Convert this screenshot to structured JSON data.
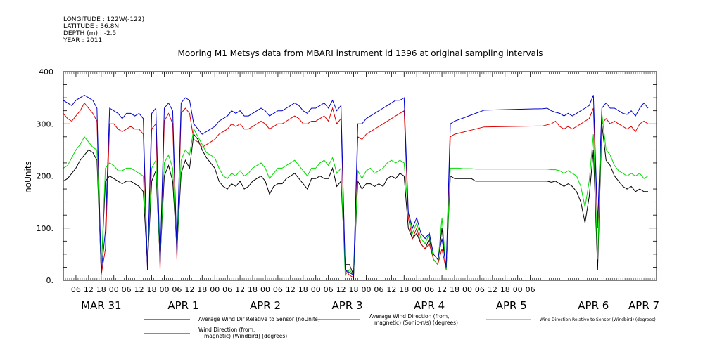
{
  "header": {
    "lines": [
      "LONGITUDE : 122W(-122)",
      "LATITUDE : 36.8N",
      "DEPTH (m) : -2.5",
      "YEAR : 2011"
    ]
  },
  "chart_data": {
    "type": "line",
    "title": "Mooring M1 Metsys data from MBARI instrument id 1396 at original sampling intervals",
    "xlabel": "",
    "ylabel": "noUnits",
    "ylim": [
      0,
      400
    ],
    "yticks": [
      0,
      100,
      200,
      300,
      400
    ],
    "ytick_labels": [
      "0.",
      "100.",
      "200.",
      "300.",
      "400"
    ],
    "xlim_hours": [
      -18,
      264
    ],
    "hour_ticks": [
      "06",
      "12",
      "18",
      "00",
      "06",
      "12",
      "18",
      "00",
      "06",
      "12",
      "18",
      "00",
      "06",
      "12",
      "18",
      "00",
      "06",
      "12",
      "18",
      "00",
      "06",
      "12",
      "18",
      "00",
      "06",
      "12",
      "18",
      "00",
      "06",
      "12",
      "18",
      "00",
      "06",
      "12",
      "18",
      "00",
      "06"
    ],
    "day_labels": [
      {
        "date": "MAR 31",
        "hour": 0
      },
      {
        "date": "APR 1",
        "hour": 39
      },
      {
        "date": "APR 2",
        "hour": 78
      },
      {
        "date": "APR 3",
        "hour": 117
      },
      {
        "date": "APR 4",
        "hour": 156
      },
      {
        "date": "APR 5",
        "hour": 195
      },
      {
        "date": "APR 6",
        "hour": 234
      },
      {
        "date": "APR 7",
        "hour": 258
      }
    ],
    "series": [
      {
        "name": "Average Wind Dir Relative to Sensor (noUnits)",
        "color": "#000000",
        "x": [
          -18,
          -16,
          -14,
          -12,
          -10,
          -8,
          -6,
          -4,
          -2,
          0,
          2,
          4,
          6,
          8,
          10,
          12,
          14,
          16,
          18,
          20,
          22,
          24,
          26,
          28,
          30,
          32,
          34,
          36,
          38,
          40,
          42,
          44,
          46,
          48,
          50,
          52,
          54,
          56,
          58,
          60,
          62,
          64,
          66,
          68,
          70,
          72,
          74,
          76,
          78,
          80,
          82,
          84,
          86,
          88,
          90,
          92,
          94,
          96,
          98,
          100,
          102,
          104,
          106,
          108,
          110,
          112,
          114,
          116,
          118,
          120,
          122,
          124,
          126,
          128,
          130,
          132,
          134,
          136,
          138,
          140,
          142,
          144,
          146,
          148,
          150,
          152,
          154,
          156,
          158,
          160,
          162,
          164,
          166,
          168,
          170,
          172,
          174,
          176,
          178,
          180,
          182,
          210,
          212,
          214,
          216,
          218,
          220,
          222,
          224,
          226,
          228,
          230,
          232,
          234,
          236,
          238,
          240,
          242,
          244,
          246,
          248,
          250,
          252,
          254,
          256,
          258,
          260
        ],
        "y": [
          190,
          195,
          205,
          215,
          230,
          240,
          250,
          245,
          230,
          20,
          190,
          200,
          195,
          190,
          185,
          190,
          190,
          185,
          180,
          170,
          30,
          190,
          210,
          40,
          200,
          220,
          190,
          60,
          205,
          230,
          215,
          280,
          270,
          250,
          235,
          225,
          215,
          190,
          180,
          175,
          185,
          180,
          190,
          175,
          180,
          190,
          195,
          200,
          190,
          165,
          180,
          185,
          185,
          195,
          200,
          205,
          195,
          185,
          175,
          195,
          195,
          200,
          195,
          195,
          215,
          180,
          190,
          30,
          30,
          10,
          190,
          175,
          185,
          185,
          180,
          185,
          180,
          195,
          200,
          195,
          205,
          200,
          100,
          80,
          90,
          70,
          60,
          80,
          40,
          30,
          100,
          20,
          200,
          195,
          195,
          195,
          195,
          195,
          190,
          190,
          190,
          190,
          190,
          188,
          190,
          185,
          180,
          185,
          180,
          170,
          150,
          110,
          160,
          250,
          20,
          300,
          230,
          220,
          200,
          190,
          180,
          175,
          180,
          170,
          175,
          170,
          170
        ]
      },
      {
        "name": "Average Wind Direction (from, magnetic) (Sonic-n/s) (degrees)",
        "color": "#e00000",
        "x": [
          -18,
          -16,
          -14,
          -12,
          -10,
          -8,
          -6,
          -4,
          -2,
          0,
          2,
          4,
          6,
          8,
          10,
          12,
          14,
          16,
          18,
          20,
          22,
          24,
          26,
          28,
          30,
          32,
          34,
          36,
          38,
          40,
          42,
          44,
          46,
          48,
          50,
          52,
          54,
          56,
          58,
          60,
          62,
          64,
          66,
          68,
          70,
          72,
          74,
          76,
          78,
          80,
          82,
          84,
          86,
          88,
          90,
          92,
          94,
          96,
          98,
          100,
          102,
          104,
          106,
          108,
          110,
          112,
          114,
          116,
          118,
          120,
          122,
          124,
          126,
          128,
          130,
          132,
          134,
          136,
          138,
          140,
          142,
          144,
          146,
          148,
          150,
          152,
          154,
          156,
          158,
          160,
          162,
          164,
          166,
          168,
          170,
          172,
          174,
          176,
          178,
          180,
          182,
          210,
          212,
          214,
          216,
          218,
          220,
          222,
          224,
          226,
          228,
          230,
          232,
          234,
          236,
          238,
          240,
          242,
          244,
          246,
          248,
          250,
          252,
          254,
          256,
          258,
          260
        ],
        "y": [
          320,
          310,
          305,
          315,
          325,
          340,
          330,
          320,
          305,
          10,
          60,
          300,
          300,
          290,
          285,
          290,
          295,
          290,
          290,
          280,
          20,
          290,
          300,
          20,
          305,
          320,
          300,
          40,
          320,
          330,
          320,
          270,
          265,
          255,
          260,
          265,
          270,
          280,
          285,
          290,
          300,
          295,
          300,
          290,
          290,
          295,
          300,
          305,
          300,
          290,
          295,
          300,
          300,
          305,
          310,
          315,
          310,
          300,
          300,
          305,
          305,
          310,
          315,
          305,
          330,
          300,
          310,
          20,
          10,
          5,
          275,
          270,
          280,
          285,
          290,
          295,
          300,
          305,
          310,
          315,
          320,
          325,
          120,
          80,
          100,
          70,
          60,
          70,
          40,
          30,
          60,
          20,
          275,
          280,
          282,
          284,
          286,
          288,
          290,
          292,
          294,
          296,
          298,
          300,
          305,
          295,
          290,
          295,
          290,
          295,
          300,
          305,
          310,
          330,
          100,
          300,
          310,
          300,
          305,
          300,
          295,
          290,
          295,
          285,
          300,
          305,
          300
        ]
      },
      {
        "name": "Wind Direction Relative to Sensor (Windbird) (degrees)",
        "color": "#00dd00",
        "x": [
          -18,
          -16,
          -14,
          -12,
          -10,
          -8,
          -6,
          -4,
          -2,
          0,
          2,
          4,
          6,
          8,
          10,
          12,
          14,
          16,
          18,
          20,
          22,
          24,
          26,
          28,
          30,
          32,
          34,
          36,
          38,
          40,
          42,
          44,
          46,
          48,
          50,
          52,
          54,
          56,
          58,
          60,
          62,
          64,
          66,
          68,
          70,
          72,
          74,
          76,
          78,
          80,
          82,
          84,
          86,
          88,
          90,
          92,
          94,
          96,
          98,
          100,
          102,
          104,
          106,
          108,
          110,
          112,
          114,
          116,
          118,
          120,
          122,
          124,
          126,
          128,
          130,
          132,
          134,
          136,
          138,
          140,
          142,
          144,
          146,
          148,
          150,
          152,
          154,
          156,
          158,
          160,
          162,
          164,
          166,
          168,
          170,
          172,
          174,
          176,
          178,
          180,
          182,
          210,
          212,
          214,
          216,
          218,
          220,
          222,
          224,
          226,
          228,
          230,
          232,
          234,
          236,
          238,
          240,
          242,
          244,
          246,
          248,
          250,
          252,
          254,
          256,
          258,
          260
        ],
        "y": [
          215,
          220,
          235,
          250,
          260,
          275,
          265,
          255,
          250,
          20,
          215,
          225,
          220,
          210,
          210,
          215,
          215,
          210,
          205,
          200,
          40,
          215,
          230,
          40,
          225,
          240,
          215,
          60,
          230,
          250,
          240,
          290,
          275,
          260,
          245,
          240,
          235,
          215,
          200,
          195,
          205,
          200,
          210,
          200,
          205,
          215,
          220,
          225,
          215,
          195,
          205,
          215,
          215,
          220,
          225,
          230,
          220,
          210,
          200,
          215,
          215,
          225,
          230,
          220,
          235,
          205,
          215,
          10,
          20,
          10,
          210,
          195,
          210,
          215,
          205,
          210,
          215,
          225,
          230,
          225,
          230,
          225,
          130,
          90,
          110,
          80,
          70,
          90,
          40,
          30,
          120,
          20,
          215,
          215,
          215,
          214,
          214,
          214,
          213,
          213,
          213,
          213,
          213,
          212,
          212,
          210,
          205,
          210,
          205,
          200,
          180,
          140,
          190,
          280,
          40,
          320,
          250,
          240,
          220,
          210,
          205,
          200,
          205,
          200,
          205,
          195,
          200
        ]
      },
      {
        "name": "Wind Direction (from, magnetic) (Windbird) (degrees)",
        "color": "#0000cc",
        "x": [
          -18,
          -16,
          -14,
          -12,
          -10,
          -8,
          -6,
          -4,
          -2,
          0,
          2,
          4,
          6,
          8,
          10,
          12,
          14,
          16,
          18,
          20,
          22,
          24,
          26,
          28,
          30,
          32,
          34,
          36,
          38,
          40,
          42,
          44,
          46,
          48,
          50,
          52,
          54,
          56,
          58,
          60,
          62,
          64,
          66,
          68,
          70,
          72,
          74,
          76,
          78,
          80,
          82,
          84,
          86,
          88,
          90,
          92,
          94,
          96,
          98,
          100,
          102,
          104,
          106,
          108,
          110,
          112,
          114,
          116,
          118,
          120,
          122,
          124,
          126,
          128,
          130,
          132,
          134,
          136,
          138,
          140,
          142,
          144,
          146,
          148,
          150,
          152,
          154,
          156,
          158,
          160,
          162,
          164,
          166,
          168,
          170,
          172,
          174,
          176,
          178,
          180,
          182,
          210,
          212,
          214,
          216,
          218,
          220,
          222,
          224,
          226,
          228,
          230,
          232,
          234,
          236,
          238,
          240,
          242,
          244,
          246,
          248,
          250,
          252,
          254,
          256,
          258,
          260
        ],
        "y": [
          345,
          340,
          335,
          345,
          350,
          355,
          350,
          345,
          330,
          15,
          95,
          330,
          325,
          320,
          310,
          320,
          320,
          315,
          320,
          310,
          20,
          320,
          330,
          30,
          330,
          340,
          325,
          50,
          340,
          350,
          345,
          300,
          290,
          280,
          285,
          290,
          295,
          305,
          310,
          315,
          325,
          320,
          325,
          315,
          315,
          320,
          325,
          330,
          325,
          315,
          320,
          325,
          325,
          330,
          335,
          340,
          335,
          325,
          320,
          330,
          330,
          335,
          340,
          330,
          345,
          325,
          335,
          20,
          15,
          10,
          300,
          300,
          310,
          315,
          320,
          325,
          330,
          335,
          340,
          345,
          345,
          350,
          130,
          100,
          120,
          90,
          80,
          90,
          50,
          40,
          80,
          25,
          300,
          305,
          308,
          311,
          314,
          317,
          320,
          323,
          326,
          329,
          330,
          325,
          322,
          320,
          315,
          320,
          315,
          320,
          325,
          330,
          335,
          355,
          110,
          330,
          340,
          330,
          330,
          325,
          320,
          318,
          325,
          315,
          330,
          340,
          330
        ]
      }
    ],
    "legend": {
      "placement": "bottom",
      "entries": [
        {
          "label": "Average Wind Dir Relative to Sensor (noUnits)",
          "color": "#000000"
        },
        {
          "label": "Average Wind Direction (from, magnetic) (Sonic-n/s) (degrees)",
          "color": "#e00000"
        },
        {
          "label": "Wind Direction Relative to Sensor (Windbird) (degrees)",
          "color": "#00dd00"
        },
        {
          "label": "Wind Direction (from, magnetic) (Windbird) (degrees)",
          "color": "#0000cc"
        }
      ]
    }
  }
}
